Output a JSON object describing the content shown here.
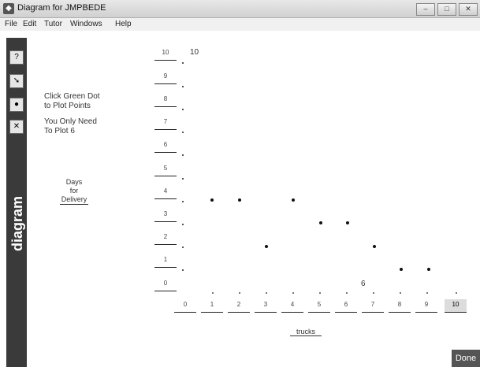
{
  "window": {
    "title": "Diagram for JMPBEDE"
  },
  "menu": [
    "File",
    "Edit",
    "Tutor",
    "Windows",
    "Help"
  ],
  "sidebar": {
    "word": "diagram"
  },
  "instructions": {
    "line1": "Click Green Dot",
    "line2": "to Plot Points",
    "line3": "You Only Need",
    "line4": "To Plot 6"
  },
  "link": {
    "line1": "Days",
    "line2": "for",
    "line3": "Delivery"
  },
  "y_ticks": [
    "10",
    "9",
    "8",
    "7",
    "6",
    "5",
    "4",
    "3",
    "2",
    "1",
    "0"
  ],
  "x_ticks": [
    "0",
    "1",
    "2",
    "3",
    "4",
    "5",
    "6",
    "7",
    "8",
    "9",
    "10"
  ],
  "top_label": "10",
  "annotation": "6",
  "x_axis_label": "trucks",
  "done_label": "Done",
  "chart_data": {
    "type": "scatter",
    "title": "",
    "xlabel": "trucks",
    "ylabel": "Days for Delivery",
    "xlim": [
      0,
      10
    ],
    "ylim": [
      0,
      10
    ],
    "points": [
      {
        "x": 1,
        "y": 4
      },
      {
        "x": 2,
        "y": 4
      },
      {
        "x": 3,
        "y": 2
      },
      {
        "x": 4,
        "y": 4
      },
      {
        "x": 5,
        "y": 3
      },
      {
        "x": 6,
        "y": 3
      },
      {
        "x": 7,
        "y": 2
      },
      {
        "x": 8,
        "y": 1
      },
      {
        "x": 9,
        "y": 1
      }
    ]
  }
}
